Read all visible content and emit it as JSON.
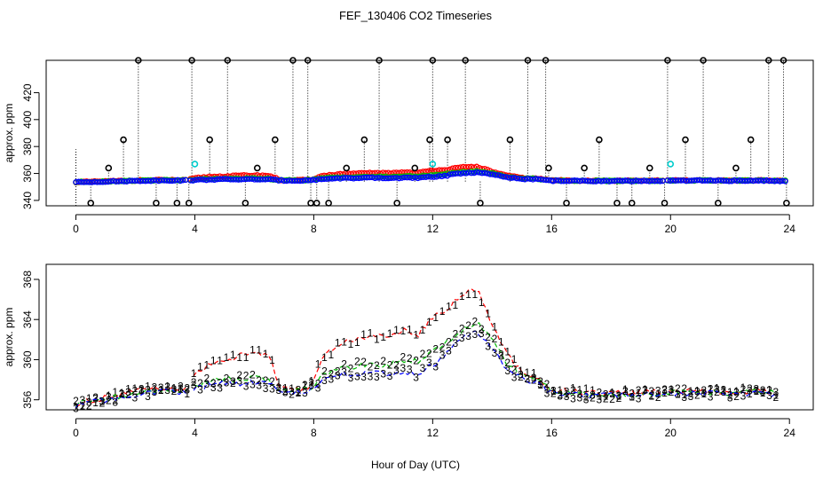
{
  "title": "FEF_130406  CO2 Timeseries",
  "xlabel": "Hour of Day (UTC)",
  "chart_data": [
    {
      "type": "scatter",
      "panel": "top",
      "ylabel": "approx. ppm",
      "xlim": [
        -1.0,
        24.8
      ],
      "ylim": [
        336,
        444
      ],
      "xticks": [
        0,
        4,
        8,
        12,
        16,
        20,
        24
      ],
      "yticks": [
        340,
        360,
        380,
        400,
        420
      ],
      "baseline_hours": [
        [
          0,
          3.75
        ],
        [
          3.85,
          16.0
        ],
        [
          16.05,
          19.8
        ],
        [
          19.9,
          23.9
        ]
      ],
      "series": [
        {
          "name": "1",
          "color": "#ff0000",
          "values": "approximately follows bottom panel level 1"
        },
        {
          "name": "2",
          "color": "#00cc00",
          "values": "approximately follows bottom panel level 2"
        },
        {
          "name": "3",
          "color": "#0000ff",
          "values": "approximately follows bottom panel level 3"
        }
      ],
      "outliers_x": [
        0.5,
        1.1,
        1.6,
        2.1,
        2.7,
        3.4,
        3.8,
        3.9,
        4.5,
        5.1,
        5.7,
        6.1,
        6.7,
        7.3,
        7.8,
        7.9,
        8.1,
        8.5,
        9.1,
        9.7,
        10.2,
        10.8,
        11.4,
        11.9,
        12.0,
        12.5,
        13.1,
        13.6,
        14.6,
        15.2,
        15.8,
        15.9,
        16.5,
        17.1,
        17.6,
        18.2,
        18.7,
        19.3,
        19.8,
        19.9,
        20.5,
        21.1,
        21.6,
        22.2,
        22.7,
        23.3,
        23.8,
        23.9
      ],
      "outliers_y": [
        338,
        364,
        385,
        444,
        338,
        338,
        338,
        444,
        385,
        444,
        338,
        364,
        385,
        444,
        444,
        338,
        338,
        338,
        364,
        385,
        444,
        338,
        364,
        385,
        444,
        385,
        444,
        338,
        385,
        444,
        444,
        364,
        338,
        364,
        385,
        338,
        338,
        364,
        338,
        444,
        385,
        444,
        338,
        364,
        385,
        444,
        444,
        338
      ],
      "cyan_points_x": [
        4.0,
        12.0,
        20.0
      ],
      "cyan_points_y": [
        367,
        367,
        367
      ]
    },
    {
      "type": "line",
      "panel": "bottom",
      "ylabel": "approx. ppm",
      "xlim": [
        -1.0,
        24.8
      ],
      "ylim": [
        355.0,
        369.5
      ],
      "xticks": [
        0,
        4,
        8,
        12,
        16,
        20,
        24
      ],
      "yticks": [
        356,
        360,
        364,
        368
      ],
      "gaps": [
        [
          3.75,
          3.85
        ],
        [
          16.0,
          16.05
        ],
        [
          19.8,
          19.9
        ]
      ],
      "series": [
        {
          "name": "1",
          "label": "1",
          "color": "#ff0000",
          "x": [
            0,
            1.0,
            2.0,
            3.0,
            3.75,
            4.0,
            4.5,
            5.0,
            5.5,
            6.0,
            6.5,
            6.9,
            7.5,
            7.9,
            8.3,
            9.0,
            9.5,
            10.0,
            10.5,
            11.0,
            11.5,
            12.0,
            12.5,
            13.0,
            13.5,
            14.0,
            14.5,
            15.0,
            15.5,
            16.0,
            17.0,
            18.0,
            19.0,
            19.8,
            20.0,
            21.0,
            22.0,
            23.0,
            23.6
          ],
          "values": [
            355.6,
            356.2,
            356.8,
            357.2,
            357.0,
            358.5,
            359.6,
            359.9,
            360.4,
            360.6,
            360.4,
            357.0,
            357.0,
            357.4,
            360.3,
            361.8,
            362.0,
            362.5,
            362.2,
            363.0,
            362.5,
            364.2,
            365.0,
            366.6,
            367.0,
            363.4,
            360.4,
            358.8,
            358.2,
            357.0,
            356.7,
            356.6,
            356.7,
            356.7,
            356.8,
            356.9,
            356.8,
            356.9,
            356.7
          ]
        },
        {
          "name": "2",
          "label": "2",
          "color": "#00bb00",
          "x": [
            0,
            1.0,
            2.0,
            3.0,
            3.75,
            4.0,
            4.5,
            5.0,
            5.5,
            6.0,
            6.5,
            6.9,
            7.5,
            7.9,
            8.3,
            9.0,
            9.5,
            10.0,
            10.5,
            11.0,
            11.5,
            12.0,
            12.5,
            13.0,
            13.5,
            14.0,
            14.5,
            15.0,
            15.5,
            16.0,
            17.0,
            18.0,
            19.0,
            19.8,
            20.0,
            21.0,
            22.0,
            23.0,
            23.6
          ],
          "values": [
            355.6,
            356.1,
            356.7,
            357.0,
            357.0,
            357.4,
            357.9,
            358.0,
            358.1,
            358.2,
            358.0,
            356.9,
            356.9,
            357.2,
            358.4,
            359.3,
            359.4,
            359.6,
            359.4,
            360.0,
            359.8,
            360.9,
            361.8,
            363.0,
            363.6,
            362.2,
            359.5,
            358.4,
            358.1,
            356.8,
            356.6,
            356.5,
            356.6,
            356.6,
            356.7,
            356.8,
            356.7,
            356.8,
            356.6
          ]
        },
        {
          "name": "3",
          "label": "3",
          "color": "#0000ff",
          "x": [
            0,
            1.0,
            2.0,
            3.0,
            3.75,
            4.0,
            4.5,
            5.0,
            5.5,
            6.0,
            6.5,
            6.9,
            7.5,
            7.9,
            8.3,
            9.0,
            9.5,
            10.0,
            10.5,
            11.0,
            11.5,
            12.0,
            12.5,
            13.0,
            13.5,
            14.0,
            14.5,
            15.0,
            15.5,
            16.0,
            17.0,
            18.0,
            19.0,
            19.8,
            20.0,
            21.0,
            22.0,
            23.0,
            23.6
          ],
          "values": [
            355.5,
            356.0,
            356.5,
            356.9,
            356.8,
            357.1,
            357.5,
            357.6,
            357.6,
            357.7,
            357.5,
            356.8,
            356.8,
            357.0,
            357.9,
            358.6,
            358.5,
            358.8,
            358.4,
            358.9,
            358.6,
            359.5,
            360.6,
            362.3,
            362.8,
            361.3,
            359.0,
            358.0,
            357.8,
            356.6,
            356.5,
            356.4,
            356.5,
            356.5,
            356.6,
            356.7,
            356.6,
            356.7,
            356.5
          ]
        }
      ]
    }
  ]
}
